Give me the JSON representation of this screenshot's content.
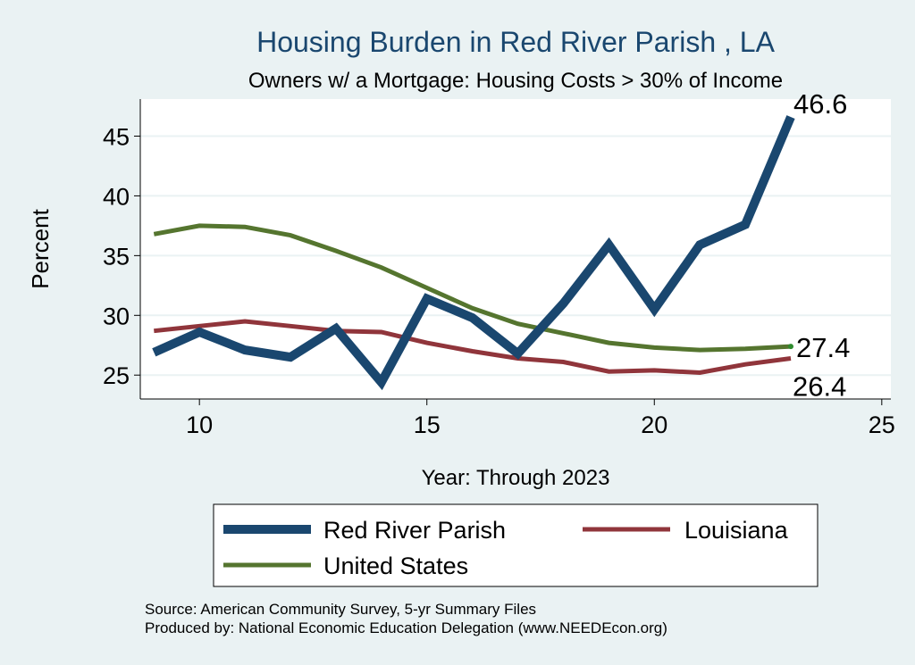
{
  "chart_data": {
    "type": "line",
    "title": "Housing Burden in Red River Parish , LA",
    "subtitle": "Owners w/ a Mortgage: Housing Costs > 30% of Income",
    "xlabel": "Year: Through 2023",
    "ylabel": "Percent",
    "xlim": [
      8.7,
      25.2
    ],
    "ylim": [
      23.0,
      48.1
    ],
    "xticks": [
      10,
      15,
      20,
      25
    ],
    "yticks": [
      25,
      30,
      35,
      40,
      45
    ],
    "grid": true,
    "legend_position": "bottom",
    "x": [
      9,
      10,
      11,
      12,
      13,
      14,
      15,
      16,
      17,
      18,
      19,
      20,
      21,
      22,
      23
    ],
    "series": [
      {
        "name": "Red River Parish",
        "color": "#1a476f",
        "values": [
          26.9,
          28.6,
          27.1,
          26.5,
          28.9,
          24.4,
          31.4,
          29.8,
          26.8,
          31.0,
          35.9,
          30.5,
          35.9,
          37.6,
          46.6
        ]
      },
      {
        "name": "Louisiana",
        "color": "#90353b",
        "values": [
          28.7,
          29.1,
          29.5,
          29.1,
          28.7,
          28.6,
          27.7,
          27.0,
          26.4,
          26.1,
          25.3,
          25.4,
          25.2,
          25.9,
          26.4
        ]
      },
      {
        "name": "United States",
        "color": "#55752f",
        "values": [
          36.8,
          37.5,
          37.4,
          36.7,
          35.4,
          34.0,
          32.3,
          30.6,
          29.3,
          28.5,
          27.7,
          27.3,
          27.1,
          27.2,
          27.4
        ]
      }
    ],
    "end_labels": [
      "46.6",
      "27.4",
      "26.4"
    ],
    "source_lines": [
      "Source: American Community Survey, 5-yr Summary Files",
      "Produced by: National Economic Education Delegation (www.NEEDEcon.org)"
    ]
  }
}
